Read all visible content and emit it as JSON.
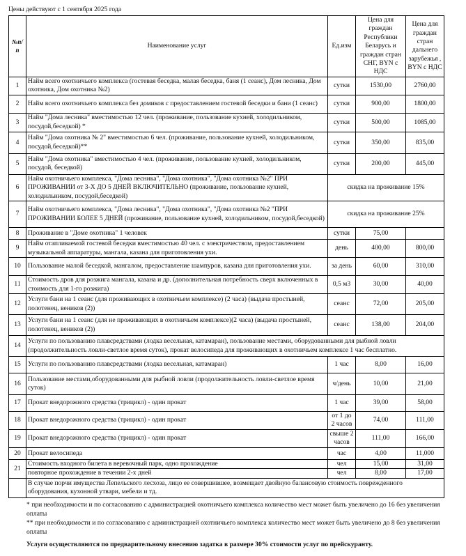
{
  "doc": {
    "effective_note": "Цены действуют с 1 сентября 2025 года",
    "headers": {
      "num": "№п/п",
      "name": "Наименование услуг",
      "unit": "Ед.изм",
      "price_local": "Цена  для граждан Республики Беларусь  и  граждан стран СНГ, BYN с НДС",
      "price_foreign": "Цена для граждан стран дальнего зарубежья , BYN с НДС"
    },
    "rows": [
      {
        "num": "1",
        "name": "Найм всего охотничьего комплекса   (гостевая беседка, малая беседка, баня (1 сеанс), Дом лесника, Дом охотника, Дом охотника №2)",
        "unit": "сутки",
        "p1": "1530,00",
        "p2": "2760,00"
      },
      {
        "num": "2",
        "name": "Найм всего охотничьего комплекса  без домиков с предоставлением гостевой беседки и бани (1 сеанс)",
        "unit": "сутки",
        "p1": "900,00",
        "p2": "1800,00"
      },
      {
        "num": "3",
        "name": "Найм \"Дома лесника\" вместимостью 12 чел. (проживание, пользование кухней, холодильником, посудой,беседкой) *",
        "unit": "сутки",
        "p1": "500,00",
        "p2": "1085,00"
      },
      {
        "num": "4",
        "name": "Найм \"Дома охотника № 2\" вместимостью 6 чел. (проживание, пользование кухней, холодильником, посудой,беседкой)**",
        "unit": "сутки",
        "p1": "350,00",
        "p2": "835,00"
      },
      {
        "num": "5",
        "name": "Найм \"Дома охотника\"  вместимостью 4 чел. (проживание, пользование кухней, холодильником, посудой, беседкой)",
        "unit": "сутки",
        "p1": "200,00",
        "p2": "445,00"
      },
      {
        "num": "6",
        "name": "Найм охотничьего комплекса, \"Дома лесника\", \"Дома охотника\", \"Дома охотника №2\" ПРИ ПРОЖИВАНИИ от 3-Х ДО 5 ДНЕЙ ВКЛЮЧИТЕЛЬНО (проживание, пользование кухней, холодильником, посудой,беседкой)",
        "merged": "скидка на проживание 15%"
      },
      {
        "num": "7",
        "name": "Найм охотничьего комплекса, \"Дома лесника\", \"Дома охотника\", \"Дома охотника №2 \"ПРИ ПРОЖИВАНИИ БОЛЕЕ 5 ДНЕЙ (проживание, пользование кухней, холодильником, посудой,беседкой)",
        "merged": "скидка на проживание 25%"
      },
      {
        "num": "8",
        "name": "Проживание в \"Доме охотника\" 1 человек",
        "unit": "сутки",
        "p1": "75,00",
        "p2": ""
      },
      {
        "num": "9",
        "name": "Найм отапливаемой гостевой беседки вместимостью 40 чел. с электричеством, предоставлением музыкальной аппаратуры,  мангала, казана для приготовления ухи.",
        "unit": "день",
        "p1": "400,00",
        "p2": "800,00"
      },
      {
        "num": "10",
        "name": "Пользование малой беседкой, мангалом, предоставление шампуров, казана для приготовления ухи.",
        "unit": "за день",
        "p1": "60,00",
        "p2": "310,00"
      },
      {
        "num": "11",
        "name": "Стоимость дров для розжига мангала, казана и др. (дополнительная потребность сверх включенных в стоимость для 1-го розжига)",
        "unit": "0,5 м3",
        "p1": "30,00",
        "p2": "40,00"
      },
      {
        "num": "12",
        "name": "Услуги бани на 1 сеанс (для проживающих в охотничьем комплексе) (2 часа) (выдача простыней, полотенец, веников (2))",
        "unit": "сеанс",
        "p1": "72,00",
        "p2": "205,00"
      },
      {
        "num": "13",
        "name": "Услуги бани на 1 сеанс (для не проживающих в охотничьем комплексе)(2 часа) (выдача простыней, полотенец, веников (2))",
        "unit": "сеанс",
        "p1": "138,00",
        "p2": "204,00"
      },
      {
        "num": "14",
        "full": "Услуги по пользованию плавсредствами (лодка весельная, катамаран), пользование местами, оборудованными для рыбной ловли (продолжительность ловли-светлое время суток), прокат велосипеда для проживающих в охотничьем комплексе 1 час бесплатно."
      },
      {
        "num": "15",
        "name": "Услуги по пользованию плавсредствами (лодка весельная, катамаран)",
        "unit": "1 час",
        "p1": "8,00",
        "p2": "16,00"
      },
      {
        "num": "16",
        "name": "Пользование местами,оборудованными для рыбной ловли (продолжительность ловли-светлое время суток)",
        "unit": "ч/день",
        "p1": "10,00",
        "p2": "21,00"
      },
      {
        "num": "17",
        "name": "Прокат внедорожного средства (трицикл) - один прокат",
        "unit": "1 час",
        "p1": "39,00",
        "p2": "58,00"
      },
      {
        "num": "18",
        "name": "Прокат внедорожного средства (трицикл) - один прокат",
        "unit": "от 1 до 2 часов",
        "p1": "74,00",
        "p2": "111,00"
      },
      {
        "num": "19",
        "name": "Прокат внедорожного средства (трицикл) - один прокат",
        "unit": "свыше 2 часов",
        "p1": "111,00",
        "p2": "166,00"
      },
      {
        "num": "20",
        "name": "Прокат велосипеда",
        "unit": "час",
        "p1": "4,00",
        "p2": "11,000"
      },
      {
        "num": "21",
        "name": "Стоимость входного билета в веревочный парк, одно прохождение",
        "unit": "чел",
        "p1": "15,00",
        "p2": "31,00"
      },
      {
        "num": "",
        "name": "повторное прохождение в течении 2-х дней",
        "unit": "чел",
        "p1": "8,00",
        "p2": "17,00"
      },
      {
        "num": "",
        "full": "В случае порчи имущества Лепельского лесхоза, лицо ее совершившее, возмещает двойную балансовую стоимость поврежденного оборудования, кухонной утвари, мебели и тд."
      }
    ],
    "footnotes": [
      "* при необходимости и по согласованию с администрацией охотничьего комплекса количество мест может быть увеличено до 16 без увеличения оплаты",
      "** при необходимости и по согласованию с администрацией охотничьего комплекса количество мест может быть увеличено до 8 без увеличения оплаты"
    ],
    "deposit_note": "Услуги осуществляются по предварительному внесению задатка в размере 30% стоимости услуг по прейскуранту."
  }
}
